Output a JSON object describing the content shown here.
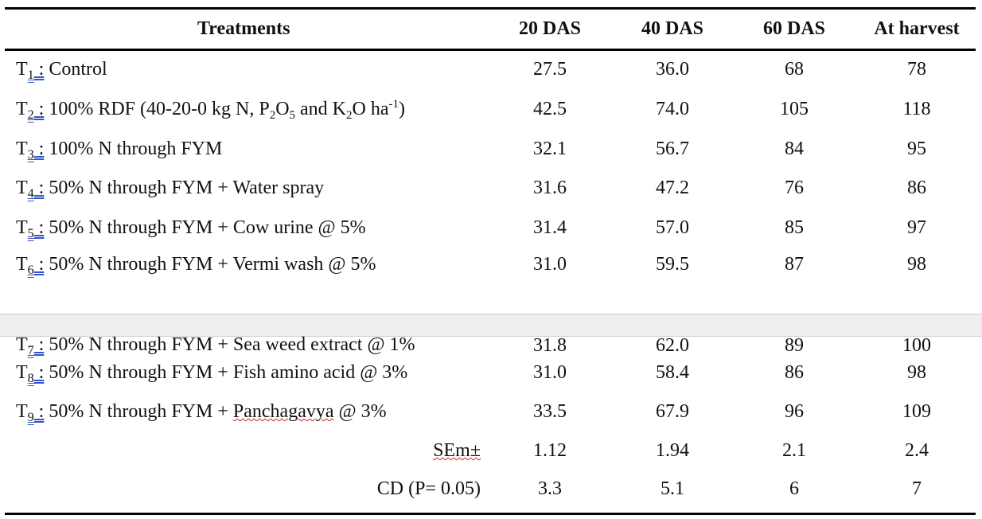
{
  "table": {
    "headers": {
      "treatments": "Treatments",
      "c1": "20 DAS",
      "c2": "40 DAS",
      "c3": "60 DAS",
      "c4": "At harvest"
    },
    "rows": [
      {
        "code": "T",
        "sub": "1",
        "sep": " :",
        "label": " Control",
        "v": [
          "27.5",
          "36.0",
          "68",
          "78"
        ]
      },
      {
        "code": "T",
        "sub": "2",
        "sep": " :",
        "label_a": " 100% RDF (40-20-0 kg N, P",
        "s1": "2",
        "label_b": "O",
        "s2": "5",
        "label_c": " and K",
        "s3": "2",
        "label_d": "O ha",
        "sup": "-1",
        "label_e": ")",
        "v": [
          "42.5",
          "74.0",
          "105",
          "118"
        ]
      },
      {
        "code": "T",
        "sub": "3",
        "sep": " :",
        "label": " 100% N through FYM",
        "v": [
          "32.1",
          "56.7",
          "84",
          "95"
        ]
      },
      {
        "code": "T",
        "sub": "4",
        "sep": " :",
        "label": " 50% N through FYM + Water spray",
        "v": [
          "31.6",
          "47.2",
          "76",
          "86"
        ]
      },
      {
        "code": "T",
        "sub": "5",
        "sep": " :",
        "label": " 50% N through FYM + Cow urine @ 5%",
        "v": [
          "31.4",
          "57.0",
          "85",
          "97"
        ]
      },
      {
        "code": "T",
        "sub": "6",
        "sep": " :",
        "label": " 50% N through FYM + Vermi wash @ 5%",
        "v": [
          "31.0",
          "59.5",
          "87",
          "98"
        ]
      },
      {
        "code": "T",
        "sub": "7",
        "sep": " :",
        "label": " 50% N through FYM + Sea weed extract @ 1%",
        "v": [
          "31.8",
          "62.0",
          "89",
          "100"
        ]
      },
      {
        "code": "T",
        "sub": "8",
        "sep": " :",
        "label": " 50% N through FYM + Fish amino acid @ 3%",
        "v": [
          "31.0",
          "58.4",
          "86",
          "98"
        ]
      },
      {
        "code": "T",
        "sub": "9",
        "sep": " :",
        "label_a": " 50% N through FYM + ",
        "label_wavy": "Panchagavya",
        "label_b": " @ 3%",
        "v": [
          "33.5",
          "67.9",
          "96",
          "109"
        ]
      }
    ],
    "stats": [
      {
        "label": "SEm±",
        "v": [
          "1.12",
          "1.94",
          "2.1",
          "2.4"
        ]
      },
      {
        "label": "CD (P= 0.05)",
        "v": [
          "3.3",
          "5.1",
          "6",
          "7"
        ]
      }
    ]
  }
}
